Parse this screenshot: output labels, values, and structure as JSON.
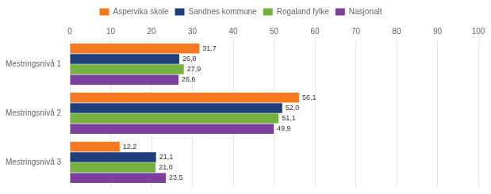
{
  "chart_data": {
    "type": "bar",
    "orientation": "horizontal",
    "categories": [
      "Mestringsnivå 1",
      "Mestringsnivå 2",
      "Mestringsnivå 3"
    ],
    "series": [
      {
        "name": "Aspervika skole",
        "color": "#F47920",
        "values": [
          31.7,
          56.1,
          12.2
        ],
        "value_labels": [
          "31,7",
          "56,1",
          "12,2"
        ]
      },
      {
        "name": "Sandnes kommune",
        "color": "#1F3F7A",
        "values": [
          26.8,
          52.0,
          21.1
        ],
        "value_labels": [
          "26,8",
          "52,0",
          "21,1"
        ]
      },
      {
        "name": "Rogaland fylke",
        "color": "#76B041",
        "values": [
          27.9,
          51.1,
          21.0
        ],
        "value_labels": [
          "27,9",
          "51,1",
          "21,0"
        ]
      },
      {
        "name": "Nasjonalt",
        "color": "#7B3F9E",
        "values": [
          26.6,
          49.9,
          23.5
        ],
        "value_labels": [
          "26,6",
          "49,9",
          "23,5"
        ]
      }
    ],
    "xlim": [
      0,
      100
    ],
    "xticks": [
      0,
      10,
      20,
      30,
      40,
      50,
      60,
      70,
      80,
      90,
      100
    ],
    "grid": true,
    "legend": "top",
    "data_labels": true
  }
}
